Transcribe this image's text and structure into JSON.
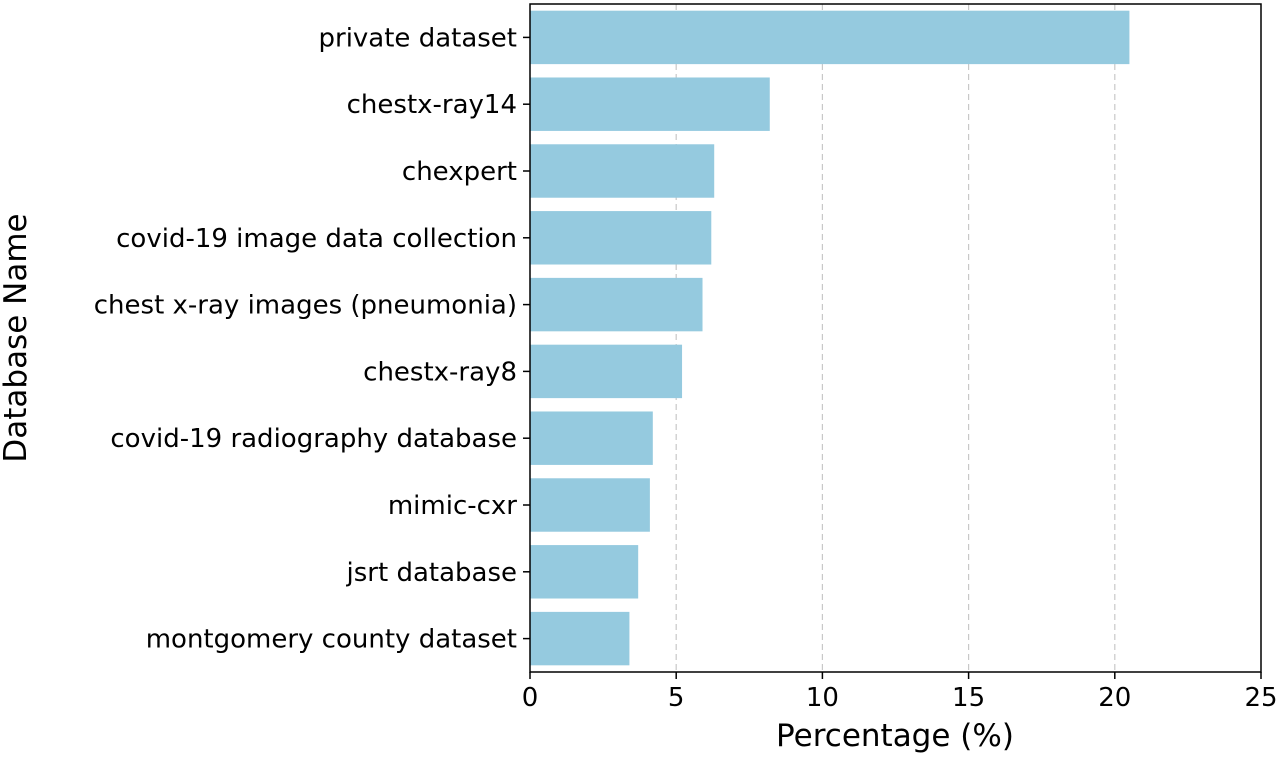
{
  "chart_data": {
    "type": "bar",
    "orientation": "horizontal",
    "categories": [
      "private dataset",
      "chestx-ray14",
      "chexpert",
      "covid-19 image data collection",
      "chest x-ray images (pneumonia)",
      "chestx-ray8",
      "covid-19 radiography database",
      "mimic-cxr",
      "jsrt database",
      "montgomery county dataset"
    ],
    "values": [
      20.5,
      8.2,
      6.3,
      6.2,
      5.9,
      5.2,
      4.2,
      4.1,
      3.7,
      3.4
    ],
    "xlabel": "Percentage (%)",
    "ylabel": "Database Name",
    "xlim": [
      0,
      25
    ],
    "xticks": [
      "0",
      "5",
      "10",
      "15",
      "20",
      "25"
    ],
    "grid": "vertical-dashed",
    "bar_color": "#95cadf"
  }
}
